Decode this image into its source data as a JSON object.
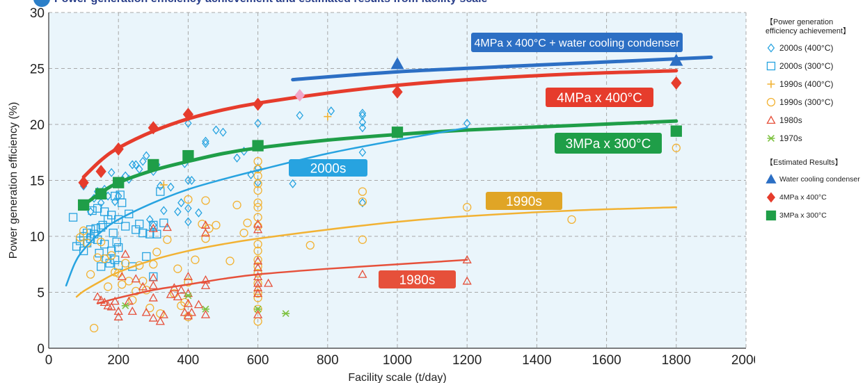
{
  "page": {
    "title": "Power generation efficiency achievement and estimated results from facility scale"
  },
  "colors": {
    "plot_bg": "#eaf5fb",
    "grid": "#a8a8a8",
    "blue_2000s": "#27a3e0",
    "orange_1990s": "#f2b233",
    "red_1980s": "#e6503a",
    "green_1970s": "#7ec241",
    "water_cooling": "#2c6fc4",
    "red_4mpa": "#e63c2c",
    "green_3mpa": "#1f9e48",
    "pink_marker": "#f2a6c8"
  },
  "legend": {
    "achievement_title": "【Power generation efficiency achievement】",
    "estimated_title": "【Estimated Results】",
    "items": [
      {
        "label": "2000s (400°C)",
        "symbol": "diamond-open",
        "color": "#27a3e0"
      },
      {
        "label": "2000s (300°C)",
        "symbol": "square-open",
        "color": "#27a3e0"
      },
      {
        "label": "1990s (400°C)",
        "symbol": "plus",
        "color": "#f2b233"
      },
      {
        "label": "1990s (300°C)",
        "symbol": "circle-open",
        "color": "#f2b233"
      },
      {
        "label": "1980s",
        "symbol": "triangle-open",
        "color": "#e6503a"
      },
      {
        "label": "1970s",
        "symbol": "asterisk",
        "color": "#7ec241"
      }
    ],
    "estimated_items": [
      {
        "label": "Water cooling condenser",
        "symbol": "triangle-filled",
        "color": "#2c6fc4"
      },
      {
        "label": "4MPa x 400°C",
        "symbol": "diamond-filled",
        "color": "#e63c2c"
      },
      {
        "label": "3MPa x 300°C",
        "symbol": "square-filled",
        "color": "#1f9e48"
      }
    ]
  },
  "chart_data": {
    "type": "scatter",
    "xlabel": "Facility scale (t/day)",
    "ylabel": "Power generation efficiency (%)",
    "xlim": [
      0,
      2000
    ],
    "ylim": [
      0,
      30
    ],
    "xticks": [
      "0",
      "200",
      "400",
      "600",
      "800",
      "1000",
      "1200",
      "1400",
      "1600",
      "1800",
      "2000"
    ],
    "yticks": [
      "0",
      "5",
      "10",
      "15",
      "20",
      "25",
      "30"
    ],
    "grid": true,
    "legend_position": "right",
    "curve_labels": [
      {
        "text": "4MPa x 400°C + water cooling condenser",
        "color": "#2c6fc4"
      },
      {
        "text": "4MPa x 400°C",
        "color": "#e63c2c"
      },
      {
        "text": "3MPa x 300°C",
        "color": "#1f9e48"
      },
      {
        "text": "2000s",
        "color": "#27a3e0"
      },
      {
        "text": "1990s",
        "color": "#e0a526"
      },
      {
        "text": "1980s",
        "color": "#e6503a"
      }
    ],
    "curves": [
      {
        "key": "water",
        "color": "#2c6fc4",
        "width": 5,
        "points": [
          [
            700,
            24.0
          ],
          [
            1000,
            24.7
          ],
          [
            1400,
            25.3
          ],
          [
            1900,
            26.0
          ]
        ]
      },
      {
        "key": "4mpa",
        "color": "#e63c2c",
        "width": 5,
        "points": [
          [
            100,
            15.3
          ],
          [
            150,
            16.8
          ],
          [
            200,
            17.9
          ],
          [
            300,
            19.4
          ],
          [
            400,
            20.5
          ],
          [
            500,
            21.3
          ],
          [
            600,
            21.9
          ],
          [
            800,
            22.8
          ],
          [
            1000,
            23.5
          ],
          [
            1200,
            24.0
          ],
          [
            1500,
            24.5
          ],
          [
            1800,
            24.8
          ]
        ]
      },
      {
        "key": "3mpa",
        "color": "#1f9e48",
        "width": 5,
        "points": [
          [
            100,
            12.8
          ],
          [
            150,
            13.9
          ],
          [
            200,
            14.8
          ],
          [
            300,
            15.9
          ],
          [
            400,
            16.7
          ],
          [
            500,
            17.4
          ],
          [
            600,
            17.9
          ],
          [
            800,
            18.6
          ],
          [
            1000,
            19.1
          ],
          [
            1200,
            19.5
          ],
          [
            1500,
            19.9
          ],
          [
            1800,
            20.3
          ]
        ]
      },
      {
        "key": "2000s",
        "color": "#27a3e0",
        "width": 2.5,
        "points": [
          [
            50,
            5.6
          ],
          [
            75,
            7.6
          ],
          [
            100,
            8.8
          ],
          [
            150,
            10.4
          ],
          [
            200,
            11.5
          ],
          [
            300,
            13.0
          ],
          [
            400,
            14.2
          ],
          [
            500,
            15.1
          ],
          [
            600,
            15.9
          ],
          [
            800,
            17.4
          ],
          [
            1000,
            18.6
          ],
          [
            1200,
            19.7
          ]
        ]
      },
      {
        "key": "1990s",
        "color": "#f2b233",
        "width": 2.5,
        "points": [
          [
            80,
            4.6
          ],
          [
            100,
            5.1
          ],
          [
            150,
            6.0
          ],
          [
            200,
            6.8
          ],
          [
            300,
            7.9
          ],
          [
            400,
            8.7
          ],
          [
            500,
            9.3
          ],
          [
            600,
            9.8
          ],
          [
            800,
            10.6
          ],
          [
            1000,
            11.3
          ],
          [
            1200,
            11.8
          ],
          [
            1500,
            12.3
          ],
          [
            1800,
            12.6
          ]
        ]
      },
      {
        "key": "1980s",
        "color": "#e6503a",
        "width": 2.5,
        "points": [
          [
            140,
            4.0
          ],
          [
            200,
            4.5
          ],
          [
            300,
            5.2
          ],
          [
            400,
            5.7
          ],
          [
            500,
            6.2
          ],
          [
            600,
            6.6
          ],
          [
            800,
            7.1
          ],
          [
            1000,
            7.5
          ],
          [
            1200,
            7.9
          ]
        ]
      }
    ],
    "estimated": {
      "water_cooling": {
        "x": [
          1000,
          1800
        ],
        "y": [
          25.4,
          25.7
        ]
      },
      "mpa4_400": {
        "x": [
          100,
          150,
          200,
          300,
          400,
          600,
          1000,
          1800
        ],
        "y": [
          14.8,
          15.8,
          17.8,
          19.7,
          20.9,
          21.8,
          22.9,
          23.7
        ]
      },
      "mpa3_300": {
        "x": [
          100,
          150,
          200,
          300,
          400,
          600,
          1000,
          1800
        ],
        "y": [
          12.8,
          13.8,
          14.8,
          16.4,
          17.2,
          18.1,
          19.3,
          19.4
        ]
      },
      "pink": {
        "x": [
          720
        ],
        "y": [
          22.6
        ]
      }
    },
    "series": [
      {
        "name": "2000s (400°C)",
        "marker": "diamond-open",
        "x": [
          100,
          120,
          130,
          140,
          150,
          160,
          170,
          180,
          190,
          200,
          210,
          220,
          230,
          240,
          250,
          260,
          270,
          280,
          290,
          300,
          300,
          310,
          320,
          330,
          350,
          370,
          380,
          390,
          400,
          400,
          400,
          400,
          400,
          410,
          430,
          450,
          450,
          480,
          500,
          540,
          560,
          580,
          600,
          600,
          600,
          700,
          720,
          810,
          900,
          900,
          900,
          900,
          900,
          900,
          1200
        ],
        "y": [
          14.5,
          12.2,
          13.4,
          14.0,
          13.0,
          14.2,
          13.6,
          15.7,
          13.1,
          13.6,
          15.0,
          15.4,
          15.1,
          16.4,
          16.4,
          16.0,
          16.7,
          17.2,
          11.5,
          11.0,
          15.8,
          16.4,
          14.5,
          12.3,
          14.4,
          12.2,
          13.0,
          16.5,
          20.1,
          17.1,
          15.0,
          11.3,
          12.5,
          15.0,
          12.1,
          18.3,
          18.5,
          19.5,
          19.3,
          17.0,
          17.6,
          15.5,
          16.1,
          14.8,
          20.1,
          14.7,
          20.8,
          21.2,
          20.8,
          21.0,
          19.7,
          20.2,
          17.5,
          13.0,
          20.1
        ]
      },
      {
        "name": "2000s (300°C)",
        "marker": "square-open",
        "x": [
          70,
          80,
          90,
          100,
          100,
          110,
          110,
          120,
          120,
          125,
          130,
          135,
          140,
          140,
          145,
          150,
          150,
          155,
          160,
          160,
          165,
          170,
          175,
          180,
          180,
          185,
          190,
          190,
          195,
          200,
          200,
          200,
          205,
          210,
          220,
          230,
          240,
          250,
          260,
          270,
          280,
          290,
          300,
          300,
          310,
          320,
          330
        ],
        "y": [
          11.7,
          9.1,
          9.6,
          10.0,
          8.7,
          10.3,
          9.4,
          10.6,
          9.8,
          12.3,
          10.2,
          10.7,
          12.5,
          9.7,
          8.5,
          10.8,
          7.3,
          11.0,
          12.2,
          9.3,
          8.0,
          11.5,
          7.6,
          8.7,
          11.9,
          10.3,
          13.6,
          7.9,
          9.5,
          11.5,
          9.0,
          7.4,
          13.7,
          13.0,
          10.9,
          12.0,
          7.3,
          10.6,
          11.1,
          10.3,
          8.2,
          10.2,
          11.0,
          6.4,
          10.2,
          14.0,
          11.2
        ]
      },
      {
        "name": "1990s (400°C)",
        "marker": "plus",
        "x": [
          330,
          800
        ],
        "y": [
          14.6,
          20.7
        ]
      },
      {
        "name": "1990s (300°C)",
        "marker": "circle-open",
        "x": [
          90,
          100,
          110,
          120,
          130,
          140,
          150,
          160,
          170,
          180,
          190,
          200,
          210,
          220,
          230,
          240,
          250,
          260,
          270,
          280,
          290,
          300,
          310,
          320,
          340,
          360,
          370,
          380,
          390,
          400,
          400,
          400,
          420,
          440,
          450,
          450,
          460,
          480,
          520,
          540,
          560,
          570,
          600,
          600,
          600,
          600,
          600,
          600,
          600,
          600,
          600,
          600,
          600,
          600,
          600,
          600,
          600,
          600,
          600,
          600,
          600,
          750,
          900,
          900,
          900,
          1200,
          1500,
          1800
        ],
        "y": [
          9.9,
          10.5,
          9.4,
          6.6,
          1.8,
          8.1,
          9.5,
          8.0,
          5.5,
          8.3,
          6.8,
          6.7,
          5.7,
          7.6,
          6.0,
          4.3,
          5.1,
          7.4,
          6.0,
          5.2,
          3.6,
          7.5,
          8.6,
          3.1,
          9.7,
          4.9,
          7.1,
          3.8,
          4.1,
          2.8,
          5.9,
          13.3,
          7.9,
          11.1,
          13.2,
          9.8,
          10.7,
          11.0,
          7.8,
          12.8,
          10.3,
          11.2,
          16.7,
          16.0,
          15.4,
          14.7,
          14.1,
          13.0,
          12.6,
          11.7,
          10.9,
          9.3,
          8.7,
          7.9,
          7.3,
          6.7,
          5.8,
          4.9,
          4.5,
          3.5,
          2.4,
          9.2,
          14.0,
          13.1,
          9.7,
          12.6,
          11.5,
          17.9
        ]
      },
      {
        "name": "1980s",
        "marker": "triangle-open",
        "x": [
          140,
          150,
          160,
          170,
          180,
          190,
          200,
          200,
          210,
          220,
          230,
          240,
          250,
          270,
          280,
          300,
          300,
          300,
          300,
          300,
          320,
          330,
          340,
          350,
          360,
          370,
          380,
          390,
          400,
          400,
          400,
          400,
          410,
          430,
          450,
          450,
          450,
          450,
          450,
          600,
          600,
          600,
          600,
          600,
          600,
          600,
          600,
          600,
          630,
          900,
          1200,
          1200
        ],
        "y": [
          4.6,
          4.3,
          4.1,
          3.8,
          3.7,
          4.2,
          3.3,
          2.8,
          6.4,
          8.4,
          4.2,
          3.3,
          6.2,
          5.5,
          3.2,
          2.7,
          4.5,
          5.6,
          6.3,
          10.7,
          2.4,
          3.0,
          10.8,
          4.8,
          5.4,
          4.6,
          5.2,
          3.2,
          6.4,
          4.9,
          4.0,
          2.9,
          3.2,
          3.9,
          11.0,
          10.3,
          5.6,
          6.1,
          3.0,
          11.1,
          10.6,
          7.8,
          7.2,
          6.4,
          5.8,
          5.4,
          4.9,
          3.0,
          5.8,
          6.6,
          7.9,
          6.0
        ]
      },
      {
        "name": "1970s",
        "marker": "asterisk",
        "x": [
          220,
          400,
          450,
          600,
          680
        ],
        "y": [
          3.8,
          4.7,
          3.5,
          3.5,
          3.1
        ]
      }
    ]
  }
}
